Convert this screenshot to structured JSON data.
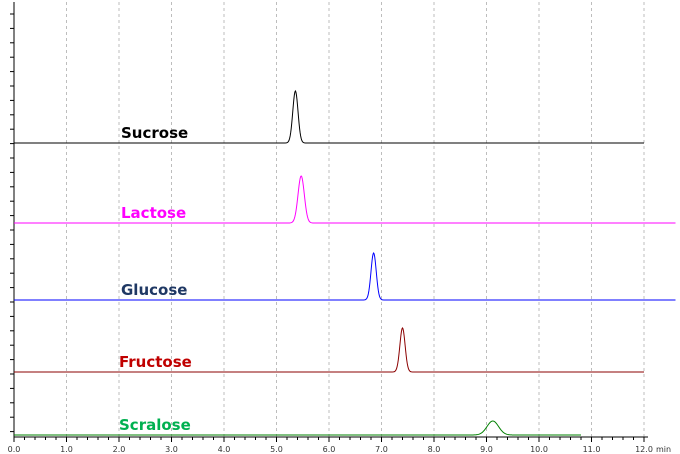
{
  "chart_data": {
    "type": "line",
    "title": "",
    "xlabel": "",
    "x_unit": "min",
    "ylabel": "",
    "xlim": [
      0.0,
      12.0
    ],
    "x_ticks": [
      "0.0",
      "1.0",
      "2.0",
      "3.0",
      "4.0",
      "5.0",
      "6.0",
      "7.0",
      "8.0",
      "9.0",
      "10.0",
      "11.0",
      "12.0"
    ],
    "grid": "vertical-dashed",
    "legend": "none",
    "series": [
      {
        "name": "Sucrose",
        "color": "#000000",
        "x_start": 0.0,
        "x_end": 12.0,
        "peak_time": 5.36,
        "peak_width": 0.05,
        "peak_height": 52
      },
      {
        "name": "Lactose",
        "color": "#ff00ff",
        "x_start": 0.0,
        "x_end": 12.6,
        "peak_time": 5.47,
        "peak_width": 0.06,
        "peak_height": 47
      },
      {
        "name": "Glucose",
        "color": "#0000ff",
        "x_start": 0.0,
        "x_end": 12.6,
        "peak_time": 6.85,
        "peak_width": 0.05,
        "peak_height": 47
      },
      {
        "name": "Fructose",
        "color": "#8b0000",
        "x_start": 0.0,
        "x_end": 12.0,
        "peak_time": 7.4,
        "peak_width": 0.05,
        "peak_height": 44
      },
      {
        "name": "Scralose",
        "color": "#008000",
        "x_start": 0.0,
        "x_end": 10.8,
        "peak_time": 9.12,
        "peak_width": 0.11,
        "peak_height": 14
      }
    ],
    "label_colors": {
      "Sucrose": "#000000",
      "Lactose": "#ff00ff",
      "Glucose": "#1f3864",
      "Fructose": "#c00000",
      "Scralose": "#00b050"
    }
  }
}
